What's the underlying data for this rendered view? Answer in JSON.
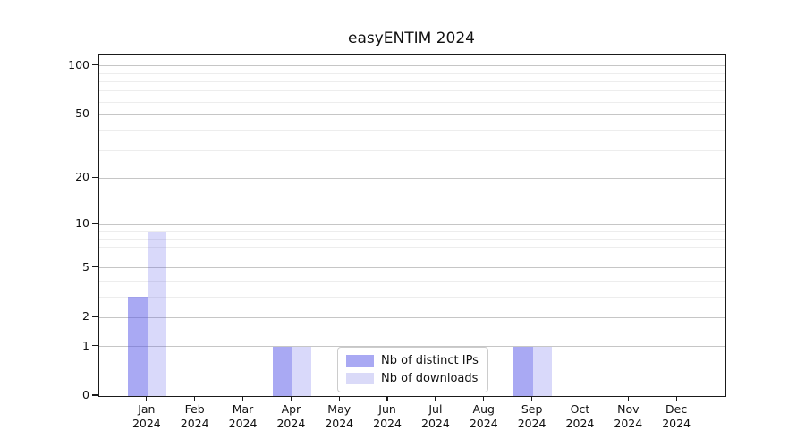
{
  "title": "easyENTIM 2024",
  "chart_data": {
    "type": "bar",
    "title": "easyENTIM 2024",
    "categories": [
      "Jan",
      "Feb",
      "Mar",
      "Apr",
      "May",
      "Jun",
      "Jul",
      "Aug",
      "Sep",
      "Oct",
      "Nov",
      "Dec"
    ],
    "category_year": "2024",
    "series": [
      {
        "name": "Nb of distinct IPs",
        "values": [
          3,
          0,
          0,
          1,
          0,
          0,
          0,
          0,
          1,
          0,
          0,
          0
        ],
        "fill": "rgba(83,83,231,0.5)",
        "swatch": "#a9a9f3"
      },
      {
        "name": "Nb of downloads",
        "values": [
          9,
          0,
          0,
          1,
          0,
          0,
          0,
          0,
          1,
          0,
          0,
          0
        ],
        "fill": "rgba(83,83,231,0.22)",
        "swatch": "#dadaf8"
      }
    ],
    "yscale": "log1p",
    "ylim": [
      0,
      117.5
    ],
    "yticks": [
      0,
      1,
      2,
      5,
      10,
      20,
      50,
      100
    ],
    "minor_yticks": [
      3,
      4,
      6,
      7,
      8,
      9,
      30,
      40,
      60,
      70,
      80,
      90
    ],
    "grid": "horizontal-major-and-minor",
    "legend_position": "bottom-center-inside",
    "xlabel": "",
    "ylabel": ""
  },
  "colors": {
    "major_grid": "#c6c6c6",
    "minor_grid": "#ededed",
    "axis": "#1a1a1a",
    "text": "#111111",
    "legend_border": "#cccccc",
    "background": "#ffffff"
  }
}
